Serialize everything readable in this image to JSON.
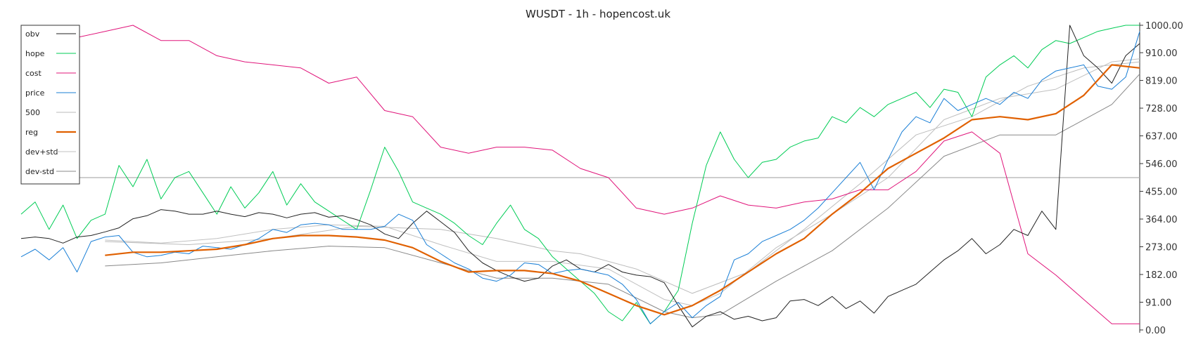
{
  "chart_data": {
    "type": "line",
    "title": "WUSDT - 1h - hopencost.uk",
    "xlabel": "",
    "ylabel": "",
    "ylim": [
      0,
      1000
    ],
    "yticks": [
      "0.00",
      "91.00",
      "182.00",
      "273.00",
      "364.00",
      "455.00",
      "546.00",
      "637.00",
      "728.00",
      "819.00",
      "910.00",
      "1000.00"
    ],
    "hline": 500,
    "grid": false,
    "legend_position": "top-left",
    "series": [
      {
        "name": "obv",
        "color": "#222222",
        "width": 1,
        "x": [
          0,
          5,
          10,
          15,
          20,
          25,
          30,
          35,
          40,
          45,
          50,
          55,
          60,
          65,
          70,
          75,
          80,
          85,
          90,
          95,
          100,
          105,
          110,
          115,
          120,
          125,
          130,
          135,
          140,
          145,
          150,
          155,
          160,
          165,
          170,
          175,
          180,
          185,
          190,
          195,
          200,
          205,
          210,
          215,
          220,
          225,
          230,
          235,
          240,
          245,
          250,
          255,
          260,
          265,
          270,
          275,
          280,
          285,
          290,
          295,
          300,
          305,
          310,
          315,
          320,
          325,
          330,
          335,
          340,
          345,
          350,
          355,
          360,
          365,
          370,
          375,
          380,
          385,
          390,
          395,
          400
        ],
        "y": [
          300,
          305,
          300,
          285,
          305,
          310,
          322,
          335,
          365,
          375,
          395,
          390,
          380,
          380,
          390,
          380,
          372,
          385,
          380,
          368,
          380,
          385,
          370,
          375,
          362,
          345,
          315,
          300,
          350,
          390,
          355,
          320,
          260,
          220,
          195,
          175,
          160,
          170,
          210,
          230,
          200,
          190,
          215,
          190,
          180,
          175,
          155,
          80,
          10,
          45,
          60,
          35,
          45,
          30,
          40,
          95,
          100,
          80,
          110,
          70,
          95,
          55,
          110,
          130,
          150,
          190,
          230,
          260,
          300,
          250,
          280,
          330,
          310,
          390,
          330,
          1000,
          900,
          860,
          810,
          900,
          940
        ]
      },
      {
        "name": "hope",
        "color": "#00cc55",
        "width": 1,
        "x": [
          0,
          5,
          10,
          15,
          20,
          25,
          30,
          35,
          40,
          45,
          50,
          55,
          60,
          65,
          70,
          75,
          80,
          85,
          90,
          95,
          100,
          105,
          110,
          115,
          120,
          125,
          130,
          135,
          140,
          145,
          150,
          155,
          160,
          165,
          170,
          175,
          180,
          185,
          190,
          195,
          200,
          205,
          210,
          215,
          220,
          225,
          230,
          235,
          240,
          245,
          250,
          255,
          260,
          265,
          270,
          275,
          280,
          285,
          290,
          295,
          300,
          305,
          310,
          315,
          320,
          325,
          330,
          335,
          340,
          345,
          350,
          355,
          360,
          365,
          370,
          375,
          380,
          385,
          390,
          395,
          400
        ],
        "y": [
          380,
          420,
          330,
          410,
          300,
          360,
          380,
          540,
          470,
          560,
          430,
          500,
          520,
          450,
          380,
          470,
          400,
          450,
          520,
          410,
          480,
          420,
          390,
          360,
          330,
          460,
          600,
          520,
          420,
          400,
          380,
          350,
          310,
          280,
          350,
          410,
          330,
          300,
          240,
          200,
          160,
          120,
          60,
          30,
          90,
          20,
          60,
          130,
          350,
          540,
          650,
          560,
          500,
          550,
          560,
          600,
          620,
          630,
          700,
          680,
          730,
          700,
          740,
          760,
          780,
          730,
          790,
          780,
          700,
          830,
          870,
          900,
          860,
          920,
          950,
          940,
          960,
          980,
          990,
          1000,
          1000
        ]
      },
      {
        "name": "cost",
        "color": "#e0147a",
        "width": 1,
        "x": [
          0,
          10,
          20,
          30,
          40,
          50,
          60,
          70,
          80,
          90,
          100,
          110,
          120,
          130,
          140,
          150,
          160,
          170,
          180,
          190,
          200,
          210,
          220,
          230,
          240,
          250,
          260,
          270,
          280,
          290,
          300,
          310,
          320,
          330,
          340,
          350,
          360,
          370,
          380,
          390,
          400
        ],
        "y": [
          910,
          930,
          960,
          980,
          1000,
          950,
          950,
          900,
          880,
          870,
          860,
          810,
          830,
          720,
          700,
          600,
          580,
          600,
          600,
          590,
          530,
          500,
          400,
          380,
          400,
          440,
          410,
          400,
          420,
          430,
          460,
          460,
          520,
          620,
          650,
          580,
          250,
          180,
          100,
          20,
          20
        ]
      },
      {
        "name": "price",
        "color": "#1a7fd6",
        "width": 1,
        "x": [
          0,
          5,
          10,
          15,
          20,
          25,
          30,
          35,
          40,
          45,
          50,
          55,
          60,
          65,
          70,
          75,
          80,
          85,
          90,
          95,
          100,
          105,
          110,
          115,
          120,
          125,
          130,
          135,
          140,
          145,
          150,
          155,
          160,
          165,
          170,
          175,
          180,
          185,
          190,
          195,
          200,
          205,
          210,
          215,
          220,
          225,
          230,
          235,
          240,
          245,
          250,
          255,
          260,
          265,
          270,
          275,
          280,
          285,
          290,
          295,
          300,
          305,
          310,
          315,
          320,
          325,
          330,
          335,
          340,
          345,
          350,
          355,
          360,
          365,
          370,
          375,
          380,
          385,
          390,
          395,
          400
        ],
        "y": [
          240,
          265,
          230,
          270,
          190,
          290,
          305,
          310,
          255,
          240,
          245,
          255,
          250,
          275,
          270,
          265,
          280,
          300,
          330,
          320,
          345,
          350,
          345,
          330,
          330,
          330,
          340,
          380,
          360,
          280,
          250,
          220,
          200,
          170,
          160,
          180,
          220,
          215,
          185,
          195,
          200,
          190,
          180,
          150,
          100,
          20,
          60,
          90,
          40,
          80,
          110,
          230,
          250,
          290,
          310,
          330,
          360,
          400,
          450,
          500,
          550,
          460,
          560,
          650,
          700,
          680,
          760,
          720,
          740,
          760,
          740,
          780,
          760,
          820,
          850,
          860,
          870,
          800,
          790,
          830,
          980
        ]
      },
      {
        "name": "500",
        "color": "#bbbbbb",
        "width": 1,
        "x": [
          30,
          60,
          90,
          120,
          150,
          170,
          190,
          200,
          220,
          240,
          260,
          280,
          300,
          320,
          340,
          360,
          380,
          400
        ],
        "y": [
          290,
          280,
          300,
          340,
          330,
          300,
          260,
          250,
          200,
          120,
          190,
          330,
          480,
          640,
          700,
          800,
          860,
          880
        ]
      },
      {
        "name": "reg",
        "color": "#e06000",
        "width": 2.2,
        "x": [
          30,
          40,
          50,
          60,
          70,
          80,
          90,
          100,
          110,
          120,
          130,
          140,
          150,
          160,
          170,
          180,
          190,
          200,
          210,
          220,
          230,
          240,
          250,
          260,
          270,
          280,
          290,
          300,
          310,
          320,
          330,
          340,
          350,
          360,
          370,
          380,
          390,
          400
        ],
        "y": [
          245,
          255,
          255,
          260,
          265,
          280,
          300,
          310,
          310,
          305,
          295,
          270,
          225,
          190,
          195,
          195,
          185,
          160,
          120,
          80,
          50,
          80,
          130,
          190,
          250,
          300,
          380,
          450,
          530,
          580,
          630,
          690,
          700,
          690,
          710,
          770,
          870,
          860
        ]
      },
      {
        "name": "dev+std",
        "color": "#c0c0c0",
        "width": 1,
        "x": [
          30,
          50,
          70,
          90,
          110,
          130,
          150,
          170,
          190,
          210,
          230,
          240,
          250,
          270,
          290,
          310,
          330,
          350,
          370,
          390,
          400
        ],
        "y": [
          295,
          285,
          300,
          330,
          345,
          340,
          280,
          225,
          225,
          200,
          100,
          80,
          120,
          270,
          380,
          500,
          690,
          760,
          790,
          880,
          890
        ]
      },
      {
        "name": "dev-std",
        "color": "#888888",
        "width": 1,
        "x": [
          30,
          50,
          70,
          90,
          110,
          130,
          150,
          170,
          190,
          210,
          230,
          240,
          250,
          270,
          290,
          310,
          330,
          350,
          370,
          390,
          400
        ],
        "y": [
          210,
          220,
          240,
          260,
          275,
          270,
          220,
          170,
          170,
          150,
          60,
          40,
          50,
          160,
          260,
          400,
          570,
          640,
          640,
          740,
          840
        ]
      }
    ]
  }
}
